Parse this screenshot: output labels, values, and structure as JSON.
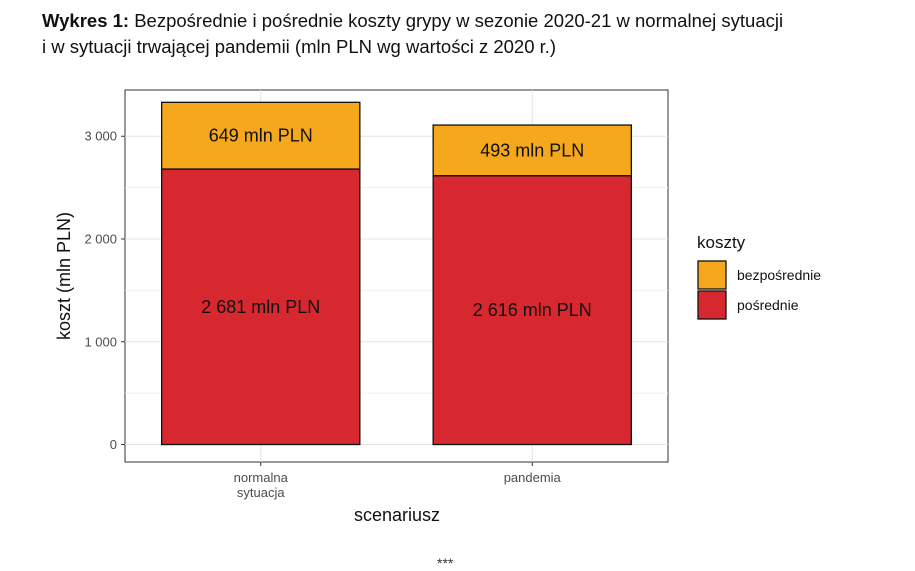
{
  "caption": {
    "lead": "Wykres 1:",
    "line1": "Bezpośrednie i pośrednie koszty grypy w sezonie 2020-21 w normalnej sytuacji",
    "line2": "i w sytuacji trwającej pandemii (mln PLN wg wartości z 2020 r.)"
  },
  "chart_data": {
    "type": "bar",
    "stacked": true,
    "categories": [
      [
        "normalna",
        "sytuacja"
      ],
      [
        "pandemia"
      ]
    ],
    "series": [
      {
        "name": "pośrednie",
        "values": [
          2681,
          2616
        ],
        "labels": [
          "2 681 mln PLN",
          "2 616 mln PLN"
        ],
        "color": "#d7282f"
      },
      {
        "name": "bezpośrednie",
        "values": [
          649,
          493
        ],
        "labels": [
          "649 mln PLN",
          "493 mln PLN"
        ],
        "color": "#f5a81c"
      }
    ],
    "xlabel": "scenariusz",
    "ylabel": "koszt (mln PLN)",
    "ylim": [
      -170,
      3450
    ],
    "yticks": [
      0,
      1000,
      2000,
      3000
    ],
    "ytick_labels": [
      "0",
      "1 000",
      "2 000",
      "3 000"
    ],
    "grid": true,
    "legend": {
      "title": "koszty",
      "position": "right",
      "entries": [
        {
          "label": "bezpośrednie",
          "color": "#f5a81c"
        },
        {
          "label": "pośrednie",
          "color": "#d7282f"
        }
      ]
    }
  },
  "footer": "***"
}
